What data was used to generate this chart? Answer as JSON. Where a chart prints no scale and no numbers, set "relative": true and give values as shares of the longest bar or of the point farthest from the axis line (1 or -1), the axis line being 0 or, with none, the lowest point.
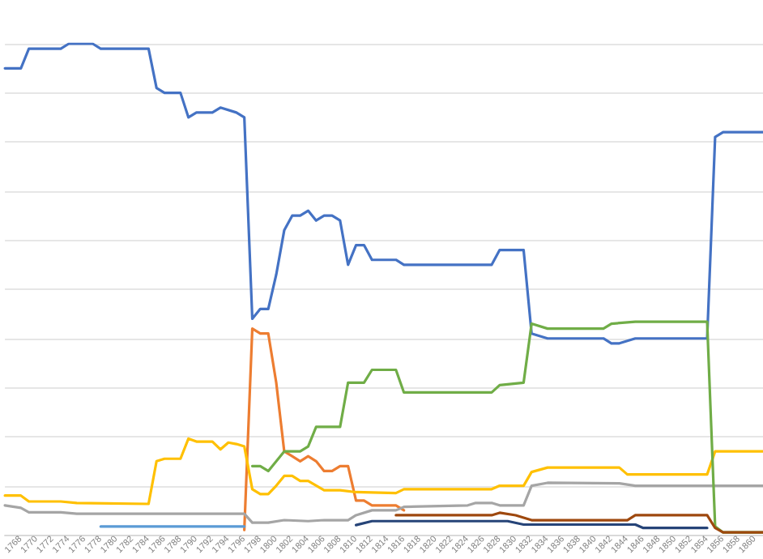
{
  "chart_data": {
    "type": "line",
    "relative": true,
    "grid": "y",
    "marker": "none",
    "line_style": "solid",
    "xlim": [
      1766,
      1861
    ],
    "xticks": [
      1768,
      1770,
      1772,
      1774,
      1776,
      1778,
      1780,
      1782,
      1784,
      1786,
      1788,
      1790,
      1792,
      1794,
      1796,
      1798,
      1800,
      1802,
      1804,
      1806,
      1808,
      1810,
      1812,
      1814,
      1816,
      1818,
      1820,
      1822,
      1824,
      1826,
      1828,
      1830,
      1832,
      1834,
      1836,
      1838,
      1840,
      1842,
      1844,
      1846,
      1848,
      1850,
      1852,
      1854,
      1856,
      1858,
      1860
    ],
    "series": [
      {
        "color": "#4472c4",
        "x": [
          1766,
          1768,
          1769,
          1773,
          1774,
          1777,
          1778,
          1784,
          1785,
          1786,
          1788,
          1789,
          1790,
          1792,
          1793,
          1795,
          1796,
          1797,
          1798,
          1799,
          1800,
          1801,
          1802,
          1803,
          1804,
          1805,
          1806,
          1807,
          1808,
          1809,
          1810,
          1811,
          1812,
          1815,
          1816,
          1818,
          1820,
          1824,
          1825,
          1827,
          1828,
          1829,
          1830,
          1831,
          1832,
          1834,
          1841,
          1842,
          1843,
          1845,
          1854,
          1855,
          1856,
          1861
        ],
        "values": [
          0.95,
          0.95,
          0.99,
          0.99,
          1.0,
          1.0,
          0.99,
          0.99,
          0.91,
          0.9,
          0.9,
          0.85,
          0.86,
          0.86,
          0.87,
          0.86,
          0.85,
          0.44,
          0.46,
          0.46,
          0.53,
          0.62,
          0.65,
          0.65,
          0.66,
          0.64,
          0.65,
          0.65,
          0.64,
          0.55,
          0.59,
          0.59,
          0.56,
          0.56,
          0.55,
          0.55,
          0.55,
          0.55,
          0.55,
          0.55,
          0.58,
          0.58,
          0.58,
          0.58,
          0.41,
          0.4,
          0.4,
          0.39,
          0.39,
          0.4,
          0.4,
          0.81,
          0.82,
          0.82
        ]
      },
      {
        "color": "#ed7d31",
        "x": [
          1796,
          1797,
          1798,
          1799,
          1800,
          1801,
          1802,
          1803,
          1804,
          1805,
          1806,
          1807,
          1808,
          1809,
          1810,
          1811,
          1812,
          1815,
          1816
        ],
        "values": [
          0.01,
          0.42,
          0.41,
          0.41,
          0.31,
          0.17,
          0.16,
          0.15,
          0.16,
          0.15,
          0.13,
          0.13,
          0.14,
          0.14,
          0.07,
          0.07,
          0.06,
          0.06,
          0.05
        ]
      },
      {
        "color": "#a5a5a5",
        "x": [
          1766,
          1768,
          1769,
          1773,
          1775,
          1796,
          1797,
          1799,
          1801,
          1804,
          1806,
          1809,
          1810,
          1812,
          1815,
          1816,
          1824,
          1825,
          1827,
          1828,
          1831,
          1832,
          1834,
          1843,
          1845,
          1861
        ],
        "values": [
          0.06,
          0.055,
          0.046,
          0.046,
          0.043,
          0.043,
          0.025,
          0.025,
          0.03,
          0.028,
          0.03,
          0.03,
          0.04,
          0.05,
          0.05,
          0.057,
          0.06,
          0.065,
          0.065,
          0.06,
          0.06,
          0.1,
          0.106,
          0.105,
          0.1,
          0.1
        ]
      },
      {
        "color": "#ffc000",
        "x": [
          1766,
          1768,
          1769,
          1773,
          1775,
          1784,
          1785,
          1786,
          1788,
          1789,
          1790,
          1792,
          1793,
          1794,
          1795,
          1796,
          1797,
          1798,
          1799,
          1800,
          1801,
          1802,
          1803,
          1804,
          1806,
          1808,
          1810,
          1815,
          1816,
          1824,
          1827,
          1828,
          1831,
          1832,
          1834,
          1843,
          1844,
          1854,
          1855,
          1861
        ],
        "values": [
          0.08,
          0.08,
          0.068,
          0.068,
          0.065,
          0.063,
          0.15,
          0.155,
          0.155,
          0.196,
          0.19,
          0.19,
          0.174,
          0.188,
          0.185,
          0.18,
          0.093,
          0.083,
          0.083,
          0.1,
          0.12,
          0.12,
          0.11,
          0.11,
          0.091,
          0.091,
          0.087,
          0.085,
          0.093,
          0.093,
          0.093,
          0.1,
          0.1,
          0.128,
          0.137,
          0.137,
          0.123,
          0.123,
          0.17,
          0.17
        ]
      },
      {
        "color": "#5b9bd5",
        "x": [
          1778,
          1796
        ],
        "values": [
          0.017,
          0.017
        ]
      },
      {
        "color": "#70ad47",
        "x": [
          1797,
          1798,
          1799,
          1801,
          1803,
          1804,
          1805,
          1808,
          1809,
          1811,
          1812,
          1815,
          1816,
          1820,
          1827,
          1828,
          1831,
          1832,
          1834,
          1841,
          1842,
          1845,
          1854,
          1855,
          1856,
          1861
        ],
        "values": [
          0.14,
          0.14,
          0.13,
          0.17,
          0.17,
          0.18,
          0.22,
          0.22,
          0.31,
          0.31,
          0.336,
          0.336,
          0.29,
          0.29,
          0.29,
          0.305,
          0.31,
          0.43,
          0.42,
          0.42,
          0.43,
          0.434,
          0.434,
          0.017,
          0.005,
          0.005
        ]
      },
      {
        "color": "#264478",
        "x": [
          1810,
          1812,
          1829,
          1831,
          1845,
          1846,
          1854
        ],
        "values": [
          0.02,
          0.028,
          0.028,
          0.021,
          0.021,
          0.014,
          0.014
        ]
      },
      {
        "color": "#9e480e",
        "x": [
          1815,
          1827,
          1828,
          1830,
          1831,
          1832,
          1844,
          1845,
          1854,
          1855,
          1856,
          1861
        ],
        "values": [
          0.04,
          0.04,
          0.045,
          0.04,
          0.035,
          0.03,
          0.03,
          0.04,
          0.04,
          0.014,
          0.005,
          0.005
        ]
      }
    ]
  }
}
